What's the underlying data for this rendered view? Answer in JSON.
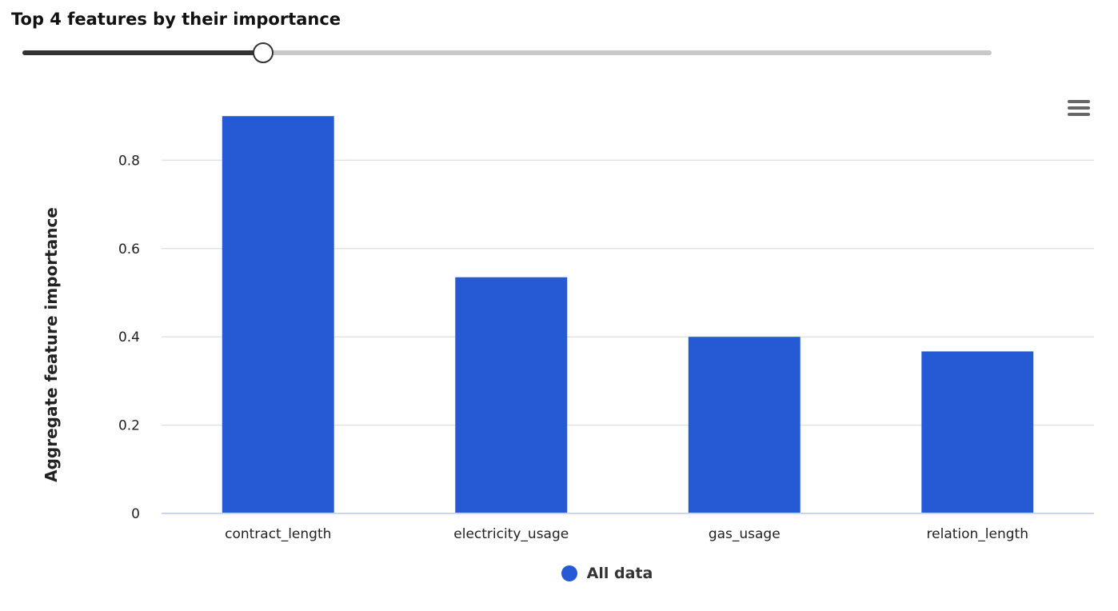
{
  "heading": "Top 4 features by their importance",
  "slider": {
    "value": 4,
    "fraction": 0.248
  },
  "menu": {
    "icon": "hamburger-menu-icon"
  },
  "colors": {
    "bar": "#2659d4",
    "grid": "#e3e3e3",
    "axis": "#ccd6eb"
  },
  "chart_data": {
    "type": "bar",
    "categories": [
      "contract_length",
      "electricity_usage",
      "gas_usage",
      "relation_length"
    ],
    "series": [
      {
        "name": "All data",
        "values": [
          0.9,
          0.535,
          0.4,
          0.367
        ]
      }
    ],
    "ylabel": "Aggregate feature importance",
    "ylim": [
      0,
      1.0
    ],
    "yticks": [
      0,
      0.2,
      0.4,
      0.6,
      0.8
    ],
    "ytick_labels": [
      "0",
      "0.2",
      "0.4",
      "0.6",
      "0.8"
    ],
    "grid": true,
    "legend": "bottom-center"
  }
}
